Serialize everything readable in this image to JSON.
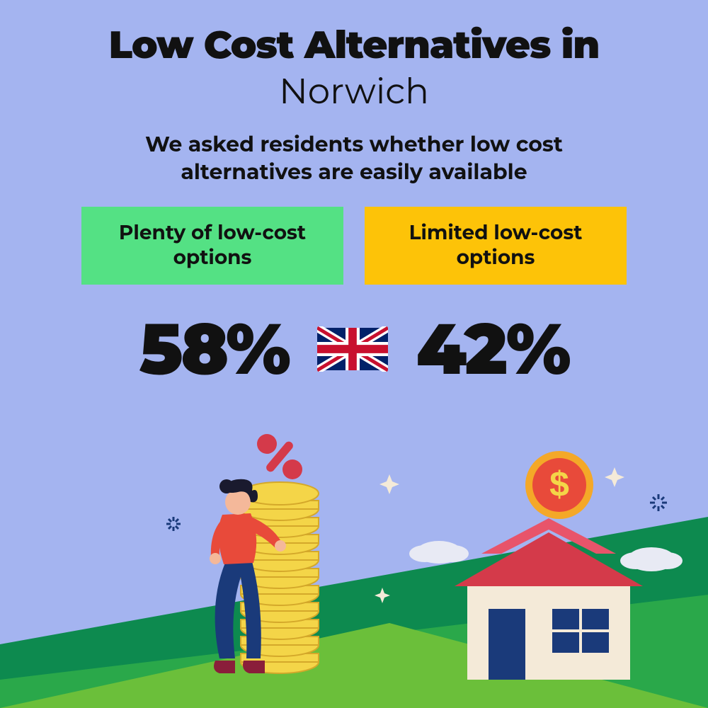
{
  "background_color": "#a4b4f0",
  "title_line1": "Low Cost Alternatives in",
  "title_city": "Norwich",
  "subtitle": "We asked residents whether low cost alternatives are easily available",
  "option_left": {
    "label": "Plenty of low-cost options",
    "bg_color": "#54e184",
    "value": "58%"
  },
  "option_right": {
    "label": "Limited low-cost options",
    "bg_color": "#fdc308",
    "value": "42%"
  },
  "flag": {
    "name": "uk-flag",
    "colors": {
      "blue": "#012169",
      "red": "#C8102E",
      "white": "#ffffff"
    }
  },
  "illustration": {
    "ground_green_dark": "#0d8a4f",
    "ground_green_light": "#6bbf3a",
    "ground_green_mid": "#2aa84a",
    "person": {
      "shirt": "#e84a3a",
      "pants": "#1a3a7a",
      "skin": "#f4b89a",
      "hair": "#1a1a2e",
      "shoes": "#8a1e3a"
    },
    "coins": {
      "fill": "#f4d548",
      "stroke": "#d4a82a"
    },
    "percent": "#d43a4a",
    "house": {
      "wall": "#f4ead8",
      "roof": "#d43a4a",
      "roof_top": "#e8546a",
      "door": "#1a3a7a",
      "window": "#1a3a7a",
      "window_frame": "#f4ead8"
    },
    "dollar_coin": {
      "fill": "#f4a828",
      "inner": "#e84a3a",
      "symbol": "#f4d548"
    },
    "cloud": "#e8eaf4",
    "sparkle": "#f4ead8",
    "burst": "#1a3a7a"
  }
}
